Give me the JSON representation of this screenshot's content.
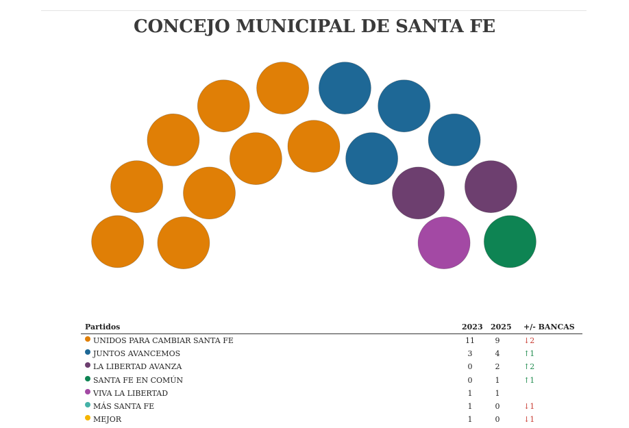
{
  "title": "CONCEJO MUNICIPAL DE SANTA FE",
  "colors": {
    "unidos": "#E07F06",
    "juntos": "#1E6896",
    "libertad_avanza": "#6D3F6F",
    "santa_fe_en_comun": "#0E8453",
    "viva_la_libertad": "#A349A4",
    "mas_santa_fe": "#45B2A8",
    "mejor": "#F5B500"
  },
  "table": {
    "headers": {
      "party": "Partidos",
      "y2023": "2023",
      "y2025": "2025",
      "diff": "+/- BANCAS"
    }
  },
  "chart_data": {
    "type": "parliament",
    "title": "CONCEJO MUNICIPAL DE SANTA FE",
    "total_seats": 17,
    "parties": [
      {
        "name": "UNIDOS PARA CAMBIAR SANTA FE",
        "color": "#E07F06",
        "seats_2023": "11",
        "seats_2025": "9",
        "diff": "↓2",
        "trend": "down"
      },
      {
        "name": "JUNTOS AVANCEMOS",
        "color": "#1E6896",
        "seats_2023": "3",
        "seats_2025": "4",
        "diff": "↑1",
        "trend": "up"
      },
      {
        "name": "LA LIBERTAD AVANZA",
        "color": "#6D3F6F",
        "seats_2023": "0",
        "seats_2025": "2",
        "diff": "↑2",
        "trend": "up"
      },
      {
        "name": "SANTA FE EN COMÚN",
        "color": "#0E8453",
        "seats_2023": "0",
        "seats_2025": "1",
        "diff": "↑1",
        "trend": "up"
      },
      {
        "name": "VIVA LA LIBERTAD",
        "color": "#A349A4",
        "seats_2023": "1",
        "seats_2025": "1",
        "diff": "",
        "trend": "none"
      },
      {
        "name": "MÁS SANTA FE",
        "color": "#45B2A8",
        "seats_2023": "1",
        "seats_2025": "0",
        "diff": "↓1",
        "trend": "down"
      },
      {
        "name": "MEJOR",
        "color": "#F5B500",
        "seats_2023": "1",
        "seats_2025": "0",
        "diff": "↓1",
        "trend": "down"
      }
    ],
    "seats": [
      {
        "party": "UNIDOS PARA CAMBIAR SANTA FE",
        "row": "outer",
        "color": "#E07F06"
      },
      {
        "party": "UNIDOS PARA CAMBIAR SANTA FE",
        "row": "outer",
        "color": "#E07F06"
      },
      {
        "party": "UNIDOS PARA CAMBIAR SANTA FE",
        "row": "outer",
        "color": "#E07F06"
      },
      {
        "party": "UNIDOS PARA CAMBIAR SANTA FE",
        "row": "outer",
        "color": "#E07F06"
      },
      {
        "party": "UNIDOS PARA CAMBIAR SANTA FE",
        "row": "outer",
        "color": "#E07F06"
      },
      {
        "party": "JUNTOS AVANCEMOS",
        "row": "outer",
        "color": "#1E6896"
      },
      {
        "party": "JUNTOS AVANCEMOS",
        "row": "outer",
        "color": "#1E6896"
      },
      {
        "party": "JUNTOS AVANCEMOS",
        "row": "outer",
        "color": "#1E6896"
      },
      {
        "party": "LA LIBERTAD AVANZA",
        "row": "outer",
        "color": "#6D3F6F"
      },
      {
        "party": "SANTA FE EN COMÚN",
        "row": "outer",
        "color": "#0E8453"
      },
      {
        "party": "UNIDOS PARA CAMBIAR SANTA FE",
        "row": "inner",
        "color": "#E07F06"
      },
      {
        "party": "UNIDOS PARA CAMBIAR SANTA FE",
        "row": "inner",
        "color": "#E07F06"
      },
      {
        "party": "UNIDOS PARA CAMBIAR SANTA FE",
        "row": "inner",
        "color": "#E07F06"
      },
      {
        "party": "UNIDOS PARA CAMBIAR SANTA FE",
        "row": "inner",
        "color": "#E07F06"
      },
      {
        "party": "JUNTOS AVANCEMOS",
        "row": "inner",
        "color": "#1E6896"
      },
      {
        "party": "LA LIBERTAD AVANZA",
        "row": "inner",
        "color": "#6D3F6F"
      },
      {
        "party": "VIVA LA LIBERTAD",
        "row": "inner",
        "color": "#A349A4"
      }
    ]
  }
}
